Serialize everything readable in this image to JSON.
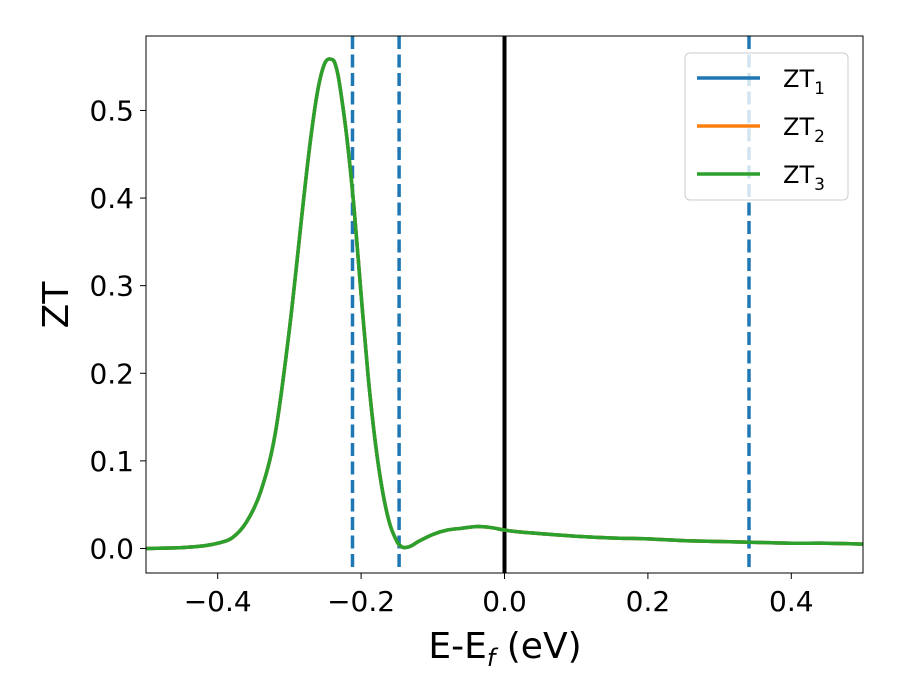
{
  "chart_data": {
    "type": "line",
    "xlabel": "E-E",
    "xlabel_sub": "f",
    "xlabel_unit": "(eV)",
    "ylabel": "ZT",
    "xlim": [
      -0.5,
      0.5
    ],
    "ylim": [
      -0.028,
      0.585
    ],
    "x_ticks": [
      -0.4,
      -0.2,
      0.0,
      0.2,
      0.4
    ],
    "x_tick_labels": [
      "−0.4",
      "−0.2",
      "0.0",
      "0.2",
      "0.4"
    ],
    "y_ticks": [
      0.0,
      0.1,
      0.2,
      0.3,
      0.4,
      0.5
    ],
    "y_tick_labels": [
      "0.0",
      "0.1",
      "0.2",
      "0.3",
      "0.4",
      "0.5"
    ],
    "grid": false,
    "legend_position": "top-right",
    "vertical_lines": [
      {
        "x": -0.212,
        "style": "dashed",
        "color": "#1f77b4"
      },
      {
        "x": -0.147,
        "style": "dashed",
        "color": "#1f77b4"
      },
      {
        "x": 0.0,
        "style": "solid",
        "color": "#000000"
      },
      {
        "x": 0.341,
        "style": "dashed",
        "color": "#1f77b4"
      }
    ],
    "series": [
      {
        "name": "ZT",
        "sub": "1",
        "color": "#1f77b4"
      },
      {
        "name": "ZT",
        "sub": "2",
        "color": "#ff7f0e"
      },
      {
        "name": "ZT",
        "sub": "3",
        "color": "#2ca02c"
      }
    ],
    "x": [
      -0.5,
      -0.45,
      -0.42,
      -0.4,
      -0.38,
      -0.36,
      -0.34,
      -0.32,
      -0.3,
      -0.28,
      -0.27,
      -0.26,
      -0.25,
      -0.24,
      -0.235,
      -0.23,
      -0.22,
      -0.21,
      -0.2,
      -0.19,
      -0.18,
      -0.17,
      -0.16,
      -0.15,
      -0.145,
      -0.14,
      -0.13,
      -0.12,
      -0.1,
      -0.08,
      -0.06,
      -0.04,
      -0.02,
      0.0,
      0.02,
      0.05,
      0.1,
      0.15,
      0.2,
      0.25,
      0.3,
      0.35,
      0.4,
      0.45,
      0.5
    ],
    "y": [
      0.0,
      0.001,
      0.003,
      0.006,
      0.012,
      0.03,
      0.065,
      0.13,
      0.25,
      0.4,
      0.47,
      0.525,
      0.555,
      0.558,
      0.55,
      0.53,
      0.47,
      0.39,
      0.29,
      0.195,
      0.12,
      0.065,
      0.028,
      0.008,
      0.003,
      0.001,
      0.003,
      0.008,
      0.016,
      0.021,
      0.023,
      0.025,
      0.024,
      0.021,
      0.019,
      0.017,
      0.014,
      0.012,
      0.011,
      0.009,
      0.008,
      0.007,
      0.006,
      0.006,
      0.005
    ]
  }
}
